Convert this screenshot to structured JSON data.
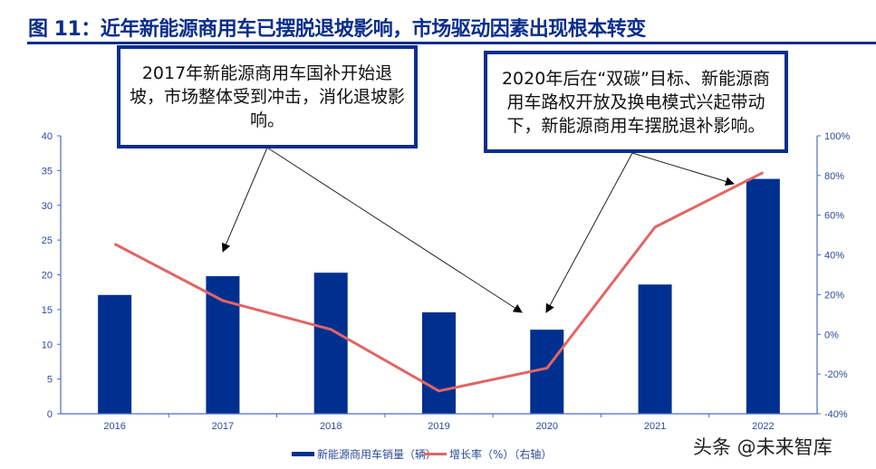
{
  "title": "图 11：近年新能源商用车已摆脱退坡影响，市场驱动因素出现根本转变",
  "annotations": [
    "2017年新能源商用车国补开始退坡，市场整体受到冲击，消化退坡影响。",
    "2020年后在“双碳”目标、新能源商用车路权开放及换电模式兴起带动下，新能源商用车摆脱退补影响。"
  ],
  "watermark": "头条 @未来智库",
  "chart_data": {
    "type": "bar+line",
    "title": "",
    "categories": [
      "2016",
      "2017",
      "2018",
      "2019",
      "2020",
      "2021",
      "2022"
    ],
    "series": [
      {
        "name": "新能源商用车销量（辆）",
        "type": "bar",
        "axis": "left",
        "color": "#00308f",
        "values": [
          17.1,
          19.8,
          20.3,
          14.6,
          12.1,
          18.6,
          33.8
        ]
      },
      {
        "name": "增长率（%）（右轴）",
        "type": "line",
        "axis": "right",
        "color": "#e06666",
        "values": [
          45.5,
          17,
          2.5,
          -28.5,
          -17,
          54,
          81.5
        ]
      }
    ],
    "left_axis": {
      "min": 0,
      "max": 40,
      "ticks": [
        "0",
        "5",
        "10",
        "15",
        "20",
        "25",
        "30",
        "35",
        "40"
      ]
    },
    "right_axis": {
      "min": -40,
      "max": 100,
      "ticks": [
        "-40%",
        "-20%",
        "0%",
        "20%",
        "40%",
        "60%",
        "80%",
        "100%"
      ]
    },
    "grid": false,
    "legend": "bottom"
  }
}
